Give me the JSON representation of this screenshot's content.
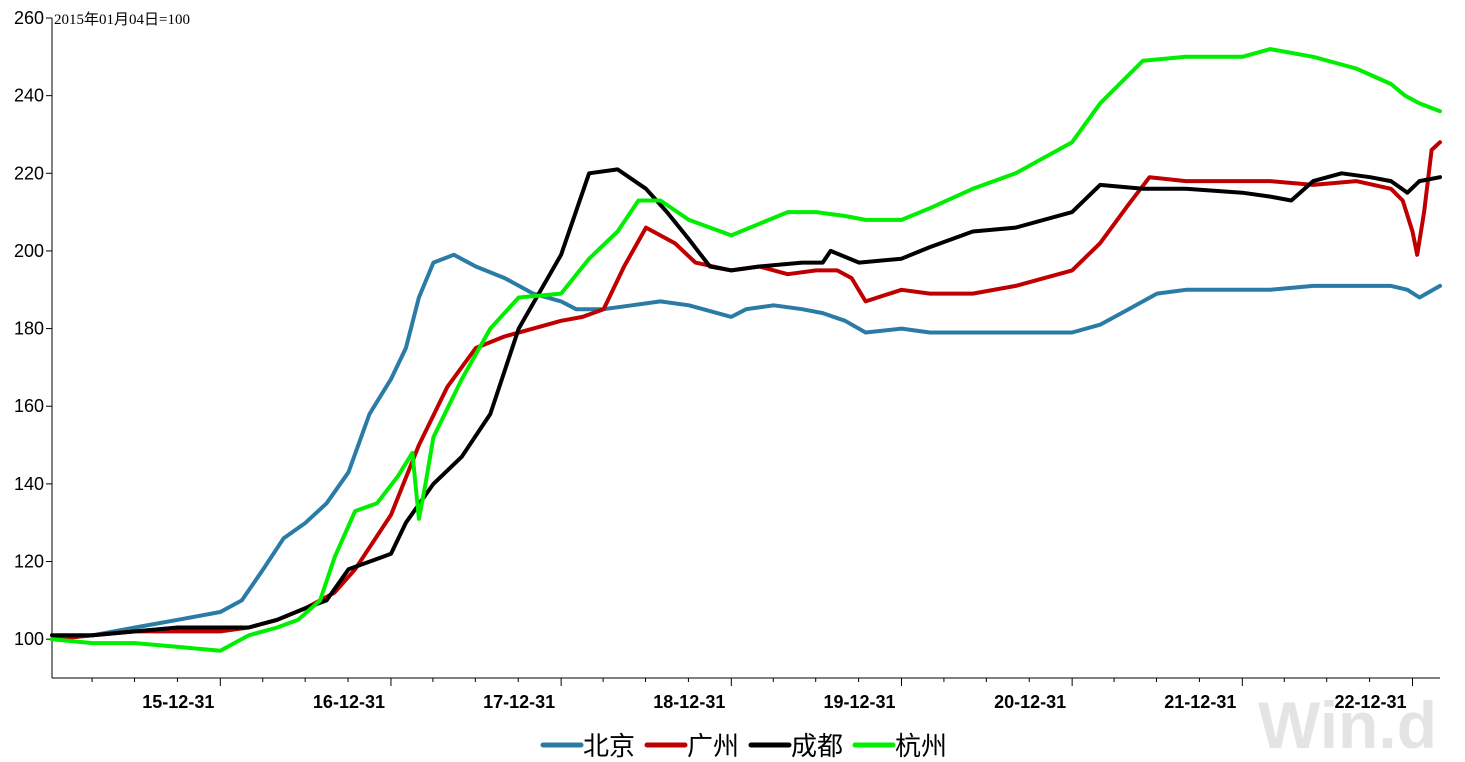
{
  "watermark": "Win.d",
  "chart_data": {
    "type": "line",
    "base_note": "2015年01月04日=100",
    "x_ticks": [
      "15-12-31",
      "16-12-31",
      "17-12-31",
      "18-12-31",
      "19-12-31",
      "20-12-31",
      "21-12-31",
      "22-12-31"
    ],
    "x_range": [
      "2015-01-04",
      "2023-02-28"
    ],
    "ylim": [
      90,
      260
    ],
    "y_ticks": [
      100,
      120,
      140,
      160,
      180,
      200,
      220,
      240,
      260
    ],
    "legend_position": "bottom-center",
    "series": [
      {
        "name": "北京",
        "color": "#2a7ba6",
        "x": [
          "2015-01-04",
          "2015-04-01",
          "2015-07-01",
          "2015-10-01",
          "2015-12-31",
          "2016-02-15",
          "2016-04-01",
          "2016-05-15",
          "2016-07-01",
          "2016-08-15",
          "2016-10-01",
          "2016-11-15",
          "2016-12-31",
          "2017-02-01",
          "2017-03-01",
          "2017-04-01",
          "2017-05-15",
          "2017-07-01",
          "2017-09-01",
          "2017-11-01",
          "2017-12-31",
          "2018-02-01",
          "2018-04-01",
          "2018-06-01",
          "2018-08-01",
          "2018-10-01",
          "2018-12-31",
          "2019-02-01",
          "2019-04-01",
          "2019-06-01",
          "2019-07-15",
          "2019-09-01",
          "2019-10-15",
          "2019-12-31",
          "2020-03-01",
          "2020-06-01",
          "2020-09-01",
          "2020-12-31",
          "2021-03-01",
          "2021-05-01",
          "2021-07-01",
          "2021-09-01",
          "2021-12-31",
          "2022-03-01",
          "2022-06-01",
          "2022-09-01",
          "2022-11-15",
          "2022-12-20",
          "2023-01-15",
          "2023-02-28"
        ],
        "y": [
          100,
          101,
          103,
          105,
          107,
          110,
          118,
          126,
          130,
          135,
          143,
          158,
          167,
          175,
          188,
          197,
          199,
          196,
          193,
          189,
          187,
          185,
          185,
          186,
          187,
          186,
          183,
          185,
          186,
          185,
          184,
          182,
          179,
          180,
          179,
          179,
          179,
          179,
          181,
          185,
          189,
          190,
          190,
          190,
          191,
          191,
          191,
          190,
          188,
          191
        ]
      },
      {
        "name": "广州",
        "color": "#c00000",
        "x": [
          "2015-01-04",
          "2015-04-01",
          "2015-07-01",
          "2015-10-01",
          "2015-12-31",
          "2016-03-01",
          "2016-05-01",
          "2016-07-01",
          "2016-09-01",
          "2016-10-15",
          "2016-12-31",
          "2017-03-01",
          "2017-05-01",
          "2017-07-01",
          "2017-09-01",
          "2017-11-01",
          "2017-12-31",
          "2018-02-15",
          "2018-04-01",
          "2018-05-15",
          "2018-07-01",
          "2018-09-01",
          "2018-10-15",
          "2018-12-31",
          "2019-03-01",
          "2019-05-01",
          "2019-07-01",
          "2019-08-15",
          "2019-09-15",
          "2019-10-15",
          "2019-12-31",
          "2020-03-01",
          "2020-06-01",
          "2020-09-01",
          "2020-12-31",
          "2021-03-01",
          "2021-05-01",
          "2021-06-15",
          "2021-09-01",
          "2021-12-31",
          "2022-03-01",
          "2022-06-01",
          "2022-09-01",
          "2022-11-15",
          "2022-12-10",
          "2022-12-31",
          "2023-01-10",
          "2023-01-25",
          "2023-02-10",
          "2023-02-28"
        ],
        "y": [
          100,
          101,
          102,
          102,
          102,
          103,
          105,
          108,
          112,
          118,
          132,
          150,
          165,
          175,
          178,
          180,
          182,
          183,
          185,
          196,
          206,
          202,
          197,
          195,
          196,
          194,
          195,
          195,
          193,
          187,
          190,
          189,
          189,
          191,
          195,
          202,
          212,
          219,
          218,
          218,
          218,
          217,
          218,
          216,
          213,
          205,
          199,
          210,
          226,
          228
        ]
      },
      {
        "name": "成都",
        "color": "#000000",
        "x": [
          "2015-01-04",
          "2015-04-01",
          "2015-07-01",
          "2015-10-01",
          "2015-12-31",
          "2016-03-01",
          "2016-05-01",
          "2016-07-01",
          "2016-08-15",
          "2016-10-01",
          "2016-12-31",
          "2017-02-01",
          "2017-04-01",
          "2017-06-01",
          "2017-08-01",
          "2017-10-01",
          "2017-12-31",
          "2018-03-01",
          "2018-05-01",
          "2018-07-01",
          "2018-08-15",
          "2018-10-01",
          "2018-11-15",
          "2018-12-31",
          "2019-03-01",
          "2019-06-01",
          "2019-07-15",
          "2019-08-01",
          "2019-10-01",
          "2019-12-31",
          "2020-03-01",
          "2020-06-01",
          "2020-09-01",
          "2020-12-31",
          "2021-03-01",
          "2021-06-01",
          "2021-09-01",
          "2021-12-31",
          "2022-03-01",
          "2022-04-15",
          "2022-06-01",
          "2022-08-01",
          "2022-10-01",
          "2022-11-15",
          "2022-12-20",
          "2023-01-15",
          "2023-02-28"
        ],
        "y": [
          101,
          101,
          102,
          103,
          103,
          103,
          105,
          108,
          110,
          118,
          122,
          130,
          140,
          147,
          158,
          180,
          199,
          220,
          221,
          216,
          210,
          203,
          196,
          195,
          196,
          197,
          197,
          200,
          197,
          198,
          201,
          205,
          206,
          210,
          217,
          216,
          216,
          215,
          214,
          213,
          218,
          220,
          219,
          218,
          215,
          218,
          219
        ]
      },
      {
        "name": "杭州",
        "color": "#00ee00",
        "x": [
          "2015-01-04",
          "2015-04-01",
          "2015-07-01",
          "2015-10-01",
          "2015-12-31",
          "2016-03-01",
          "2016-05-01",
          "2016-06-15",
          "2016-08-01",
          "2016-09-01",
          "2016-10-15",
          "2016-12-01",
          "2017-01-15",
          "2017-02-15",
          "2017-03-01",
          "2017-03-15",
          "2017-04-01",
          "2017-06-01",
          "2017-08-01",
          "2017-10-01",
          "2017-12-31",
          "2018-03-01",
          "2018-05-01",
          "2018-06-15",
          "2018-08-01",
          "2018-10-01",
          "2018-12-31",
          "2019-03-01",
          "2019-05-01",
          "2019-07-01",
          "2019-09-01",
          "2019-10-15",
          "2019-12-31",
          "2020-03-01",
          "2020-06-01",
          "2020-09-01",
          "2020-12-31",
          "2021-03-01",
          "2021-06-01",
          "2021-09-01",
          "2021-12-31",
          "2022-03-01",
          "2022-06-01",
          "2022-09-01",
          "2022-11-15",
          "2022-12-15",
          "2023-01-15",
          "2023-02-28"
        ],
        "y": [
          100,
          99,
          99,
          98,
          97,
          101,
          103,
          105,
          110,
          121,
          133,
          135,
          142,
          148,
          131,
          140,
          152,
          167,
          180,
          188,
          189,
          198,
          205,
          213,
          213,
          208,
          204,
          207,
          210,
          210,
          209,
          208,
          208,
          211,
          216,
          220,
          228,
          238,
          249,
          250,
          250,
          252,
          250,
          247,
          243,
          240,
          238,
          236
        ]
      }
    ]
  }
}
